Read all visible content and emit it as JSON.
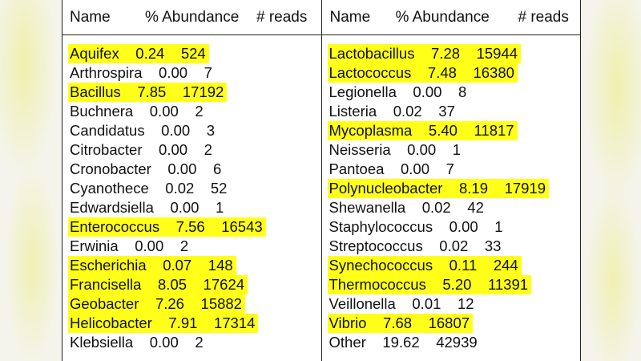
{
  "headers": {
    "name": "Name",
    "abundance": "% Abundance",
    "reads": "# reads"
  },
  "highlight_color": "#ffff1a",
  "left_column": [
    {
      "name": "Aquifex",
      "abundance": "0.24",
      "reads": "524",
      "highlighted": true
    },
    {
      "name": "Arthrospira",
      "abundance": "0.00",
      "reads": "7",
      "highlighted": false
    },
    {
      "name": "Bacillus",
      "abundance": "7.85",
      "reads": "17192",
      "highlighted": true
    },
    {
      "name": "Buchnera",
      "abundance": "0.00",
      "reads": "2",
      "highlighted": false
    },
    {
      "name": "Candidatus",
      "abundance": "0.00",
      "reads": "3",
      "highlighted": false
    },
    {
      "name": "Citrobacter",
      "abundance": "0.00",
      "reads": "2",
      "highlighted": false
    },
    {
      "name": "Cronobacter",
      "abundance": "0.00",
      "reads": "6",
      "highlighted": false
    },
    {
      "name": "Cyanothece",
      "abundance": "0.02",
      "reads": "52",
      "highlighted": false
    },
    {
      "name": "Edwardsiella",
      "abundance": "0.00",
      "reads": "1",
      "highlighted": false
    },
    {
      "name": "Enterococcus",
      "abundance": "7.56",
      "reads": "16543",
      "highlighted": true
    },
    {
      "name": "Erwinia",
      "abundance": "0.00",
      "reads": "2",
      "highlighted": false
    },
    {
      "name": "Escherichia",
      "abundance": "0.07",
      "reads": "148",
      "highlighted": true
    },
    {
      "name": "Francisella",
      "abundance": "8.05",
      "reads": "17624",
      "highlighted": true
    },
    {
      "name": "Geobacter",
      "abundance": "7.26",
      "reads": "15882",
      "highlighted": true
    },
    {
      "name": "Helicobacter",
      "abundance": "7.91",
      "reads": "17314",
      "highlighted": true
    },
    {
      "name": "Klebsiella",
      "abundance": "0.00",
      "reads": "2",
      "highlighted": false
    }
  ],
  "right_column": [
    {
      "name": "Lactobacillus",
      "abundance": "7.28",
      "reads": "15944",
      "highlighted": true
    },
    {
      "name": "Lactococcus",
      "abundance": "7.48",
      "reads": "16380",
      "highlighted": true
    },
    {
      "name": "Legionella",
      "abundance": "0.00",
      "reads": "8",
      "highlighted": false
    },
    {
      "name": "Listeria",
      "abundance": "0.02",
      "reads": "37",
      "highlighted": false
    },
    {
      "name": "Mycoplasma",
      "abundance": "5.40",
      "reads": "11817",
      "highlighted": true
    },
    {
      "name": "Neisseria",
      "abundance": "0.00",
      "reads": "1",
      "highlighted": false
    },
    {
      "name": "Pantoea",
      "abundance": "0.00",
      "reads": "7",
      "highlighted": false
    },
    {
      "name": "Polynucleobacter",
      "abundance": "8.19",
      "reads": "17919",
      "highlighted": true
    },
    {
      "name": "Shewanella",
      "abundance": "0.02",
      "reads": "42",
      "highlighted": false
    },
    {
      "name": "Staphylococcus",
      "abundance": "0.00",
      "reads": "1",
      "highlighted": false
    },
    {
      "name": "Streptococcus",
      "abundance": "0.02",
      "reads": "33",
      "highlighted": false
    },
    {
      "name": "Synechococcus",
      "abundance": "0.11",
      "reads": "244",
      "highlighted": true
    },
    {
      "name": "Thermococcus",
      "abundance": "5.20",
      "reads": "11391",
      "highlighted": true
    },
    {
      "name": "Veillonella",
      "abundance": "0.01",
      "reads": "12",
      "highlighted": false
    },
    {
      "name": "Vibrio",
      "abundance": "7.68",
      "reads": "16807",
      "highlighted": true
    },
    {
      "name": "Other",
      "abundance": "19.62",
      "reads": "42939",
      "highlighted": false
    }
  ]
}
